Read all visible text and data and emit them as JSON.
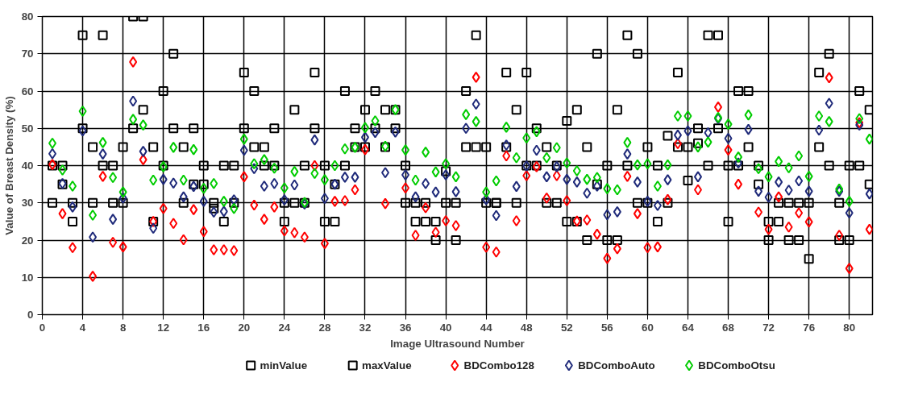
{
  "chart_data": {
    "type": "scatter",
    "xlabel": "Image Ultrasound Number",
    "ylabel": "Value of Breast Density (%)",
    "x": [
      1,
      2,
      3,
      4,
      5,
      6,
      7,
      8,
      9,
      10,
      11,
      12,
      13,
      14,
      15,
      16,
      17,
      18,
      19,
      20,
      21,
      22,
      23,
      24,
      25,
      26,
      27,
      28,
      29,
      30,
      31,
      32,
      33,
      34,
      35,
      36,
      37,
      38,
      39,
      40,
      41,
      42,
      43,
      44,
      45,
      46,
      47,
      48,
      49,
      50,
      51,
      52,
      53,
      54,
      55,
      56,
      57,
      58,
      59,
      60,
      61,
      62,
      63,
      64,
      65,
      66,
      67,
      68,
      69,
      70,
      71,
      72,
      73,
      74,
      75,
      76,
      77,
      78,
      79,
      80,
      81,
      82
    ],
    "xlim": [
      0,
      82.3
    ],
    "xticks": [
      0,
      4,
      8,
      12,
      16,
      20,
      24,
      28,
      32,
      36,
      40,
      44,
      48,
      52,
      56,
      60,
      64,
      68,
      72,
      76,
      80
    ],
    "ylim": [
      0,
      80
    ],
    "yticks": [
      0,
      10,
      20,
      30,
      40,
      50,
      60,
      70,
      80
    ],
    "grid": true,
    "legend": "bottom",
    "series": [
      {
        "name": "minValue",
        "color": "#000000",
        "marker": "square",
        "values": [
          30,
          35,
          25,
          50,
          30,
          40,
          30,
          30,
          50,
          55,
          25,
          40,
          50,
          30,
          35,
          35,
          28.5,
          25,
          30,
          50,
          45,
          40,
          40,
          25,
          30,
          30,
          50,
          25,
          25,
          40,
          45,
          45,
          50,
          45,
          50,
          30,
          25,
          25,
          20,
          30,
          20,
          45,
          45,
          30,
          30,
          45,
          30,
          40,
          40,
          30,
          30,
          25,
          25,
          20,
          35,
          20,
          20,
          40,
          30,
          30,
          25,
          30,
          45,
          36,
          46,
          40,
          50,
          25,
          40,
          45,
          35,
          20,
          25,
          20,
          20,
          15,
          45,
          40,
          20,
          20,
          40,
          35
        ]
      },
      {
        "name": "maxValue",
        "color": "#000000",
        "marker": "square",
        "values": [
          40,
          40,
          30,
          75,
          45,
          75,
          40,
          45,
          80,
          80,
          45,
          60,
          70,
          45,
          50,
          40,
          30,
          40,
          40,
          65,
          60,
          45,
          50,
          30,
          55,
          40,
          65,
          40,
          35,
          60,
          50,
          55,
          60,
          55,
          55,
          40,
          30,
          30,
          25,
          38.5,
          30,
          60,
          75,
          45,
          30,
          65,
          55,
          65,
          50,
          45,
          40,
          52,
          55,
          45,
          70,
          40,
          55,
          75,
          70,
          45,
          40,
          48,
          65,
          45,
          50,
          75,
          75,
          40,
          60,
          60,
          40,
          25,
          30,
          30,
          30,
          30,
          65,
          70,
          30,
          40,
          60,
          55
        ]
      },
      {
        "name": "BDCombo128",
        "color": "#ff0000",
        "marker": "diamond",
        "values": [
          40.3,
          27.1,
          18,
          null,
          10.3,
          37.1,
          19.4,
          18.2,
          67.8,
          41.6,
          25,
          28.5,
          24.5,
          20.1,
          28.2,
          22.3,
          17.4,
          17.4,
          17.2,
          37,
          29.4,
          25.6,
          28.9,
          22.5,
          22,
          20.8,
          40,
          19.1,
          30.4,
          30.6,
          33.5,
          44.3,
          null,
          29.8,
          null,
          34,
          21.3,
          28.7,
          22.1,
          25.2,
          23.9,
          null,
          63.7,
          18.1,
          16.8,
          42.6,
          25.2,
          37.3,
          39.7,
          31.3,
          37.3,
          30.6,
          25.1,
          25.4,
          21.6,
          15.1,
          17.7,
          37.1,
          27.1,
          18,
          18.2,
          30.9,
          45.9,
          null,
          33.5,
          null,
          55.7,
          44.2,
          35,
          null,
          27.5,
          22.9,
          31.6,
          23.5,
          27.3,
          24.9,
          null,
          63.6,
          21.3,
          12.4,
          51.5,
          22.9
        ]
      },
      {
        "name": "BDComboAuto",
        "color": "#1f2a7a",
        "marker": "diamond",
        "values": [
          43.2,
          35.2,
          28.9,
          49.3,
          20.8,
          43.1,
          25.6,
          31.3,
          57.3,
          43.8,
          23.2,
          36.3,
          35.3,
          31.6,
          34.4,
          30.4,
          27.5,
          27.7,
          30.8,
          44.1,
          39.2,
          34.5,
          35.2,
          30.8,
          34.8,
          29.7,
          46.9,
          31.2,
          35,
          36.9,
          36.9,
          47.6,
          48.9,
          38.1,
          49,
          37.5,
          31.6,
          35.2,
          32.9,
          37.5,
          33,
          50,
          56.5,
          30.9,
          26.6,
          45.5,
          34.4,
          39.9,
          44.1,
          37,
          39.7,
          36.3,
          35.6,
          32.6,
          34.5,
          26.8,
          27.6,
          43.1,
          35.6,
          30.4,
          29.3,
          36.2,
          48.2,
          49.3,
          37,
          48.8,
          52.6,
          47.3,
          40.7,
          49.7,
          33.1,
          31.5,
          35.6,
          33.4,
          35.9,
          33.1,
          49.5,
          56.7,
          33.1,
          27.3,
          50.9,
          32.4
        ]
      },
      {
        "name": "BDComboOtsu",
        "color": "#00cc00",
        "marker": "diamond",
        "values": [
          46,
          38.8,
          34.5,
          54.6,
          26.7,
          46.2,
          36.8,
          32.9,
          52.4,
          50.9,
          36.1,
          39.7,
          44.9,
          36.1,
          44.3,
          33.9,
          35.2,
          30.4,
          28.5,
          47.1,
          40.5,
          41.6,
          39.3,
          34,
          38.4,
          30.1,
          37.9,
          36.2,
          40,
          44.5,
          44.9,
          50.2,
          52,
          45.2,
          55,
          44.2,
          36.1,
          43.6,
          38.3,
          40.5,
          37,
          53.7,
          51.8,
          32.9,
          35.9,
          50.3,
          42.1,
          47.4,
          49.1,
          42.1,
          44.8,
          40.7,
          38.6,
          36.3,
          36.8,
          33.8,
          33.5,
          46.2,
          40.2,
          40.5,
          34.5,
          40.2,
          53.3,
          53.3,
          45,
          46.3,
          52.9,
          51.1,
          42.3,
          53.6,
          39.2,
          37,
          41.1,
          39.4,
          42.6,
          37.1,
          53.3,
          51.8,
          33.7,
          30.4,
          52.6,
          47.1
        ]
      }
    ]
  }
}
